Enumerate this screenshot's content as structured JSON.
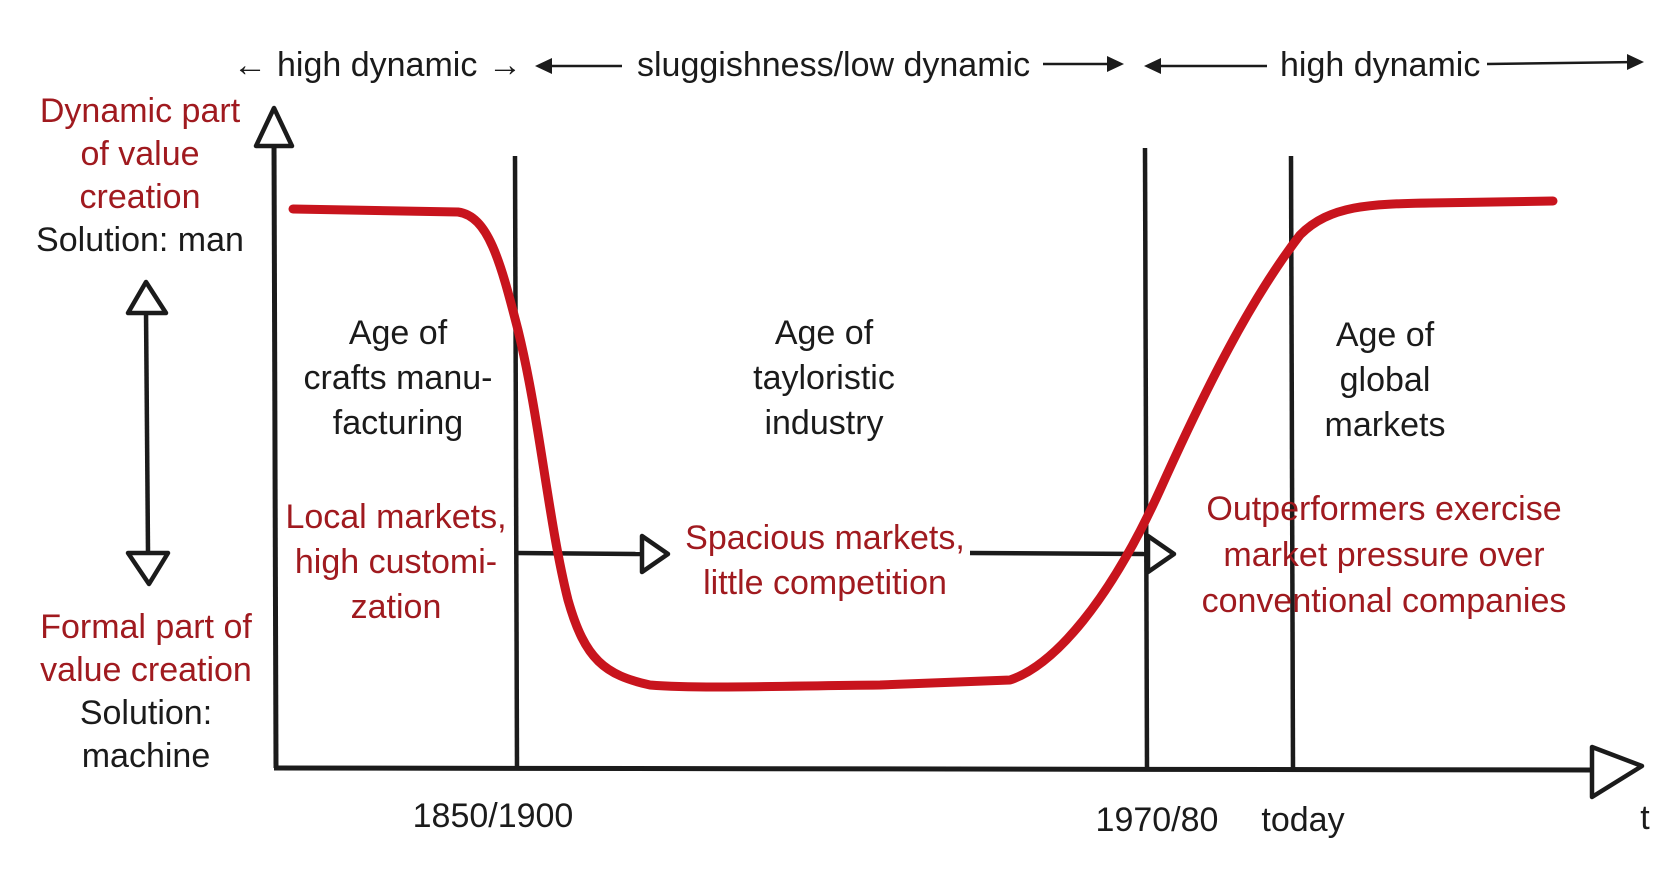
{
  "phases": {
    "left": "high dynamic",
    "middle": "sluggishness/low dynamic",
    "right": "high dynamic"
  },
  "y_axis": {
    "top_label": [
      "Dynamic part",
      "of value",
      "creation"
    ],
    "top_solution": "Solution: man",
    "bottom_label": [
      "Formal part of",
      "value creation"
    ],
    "bottom_solution": [
      "Solution:",
      "machine"
    ]
  },
  "ages": {
    "crafts": [
      "Age of",
      "crafts manu-",
      "facturing"
    ],
    "tayloristic": [
      "Age of",
      "tayloristic",
      "industry"
    ],
    "global": [
      "Age of",
      "global",
      "markets"
    ]
  },
  "markets": {
    "local": [
      "Local markets,",
      "high customi-",
      "zation"
    ],
    "spacious": [
      "Spacious markets,",
      "little competition"
    ],
    "outperformers": [
      "Outperformers exercise",
      "market pressure over",
      "conventional companies"
    ]
  },
  "x_axis": {
    "ticks": [
      "1850/1900",
      "1970/80",
      "today"
    ],
    "var": "t"
  },
  "colors": {
    "ink": "#1b1b1b",
    "curve": "#c8141d",
    "red_text": "#a01a1f"
  }
}
